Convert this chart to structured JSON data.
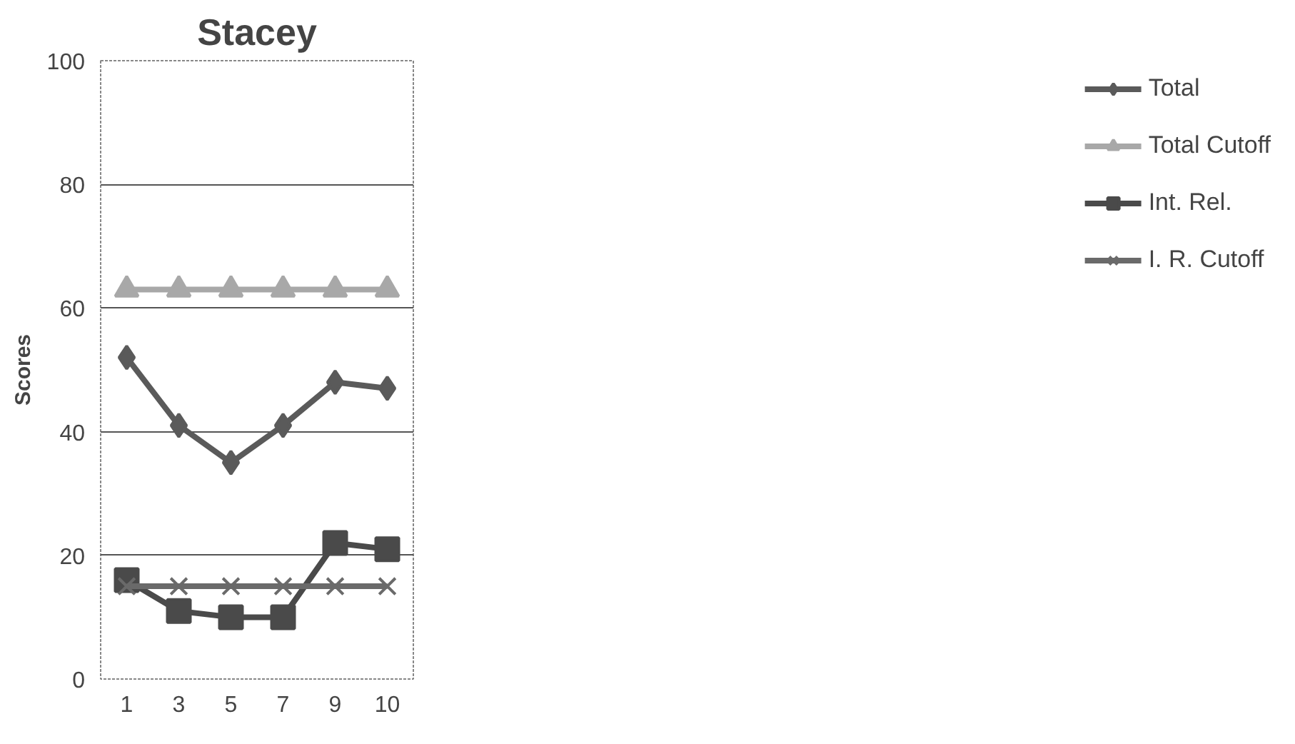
{
  "chart_data": {
    "type": "line",
    "title": "Stacey",
    "ylabel": "Scores",
    "categories": [
      "1",
      "3",
      "5",
      "7",
      "9",
      "10"
    ],
    "ylim": [
      0,
      100
    ],
    "yticks": [
      0,
      20,
      40,
      60,
      80,
      100
    ],
    "grid": "y",
    "legend": "right",
    "series": [
      {
        "name": "Total",
        "color": "#5a5a5a",
        "marker": "diamond",
        "values": [
          52,
          41,
          35,
          41,
          48,
          47
        ]
      },
      {
        "name": "Total Cutoff",
        "color": "#a8a8a8",
        "marker": "triangle",
        "values": [
          63,
          63,
          63,
          63,
          63,
          63
        ]
      },
      {
        "name": "Int. Rel.",
        "color": "#4a4a4a",
        "marker": "square",
        "values": [
          16,
          11,
          10,
          10,
          22,
          21
        ]
      },
      {
        "name": "I. R. Cutoff",
        "color": "#6a6a6a",
        "marker": "cross",
        "values": [
          15,
          15,
          15,
          15,
          15,
          15
        ]
      }
    ]
  }
}
